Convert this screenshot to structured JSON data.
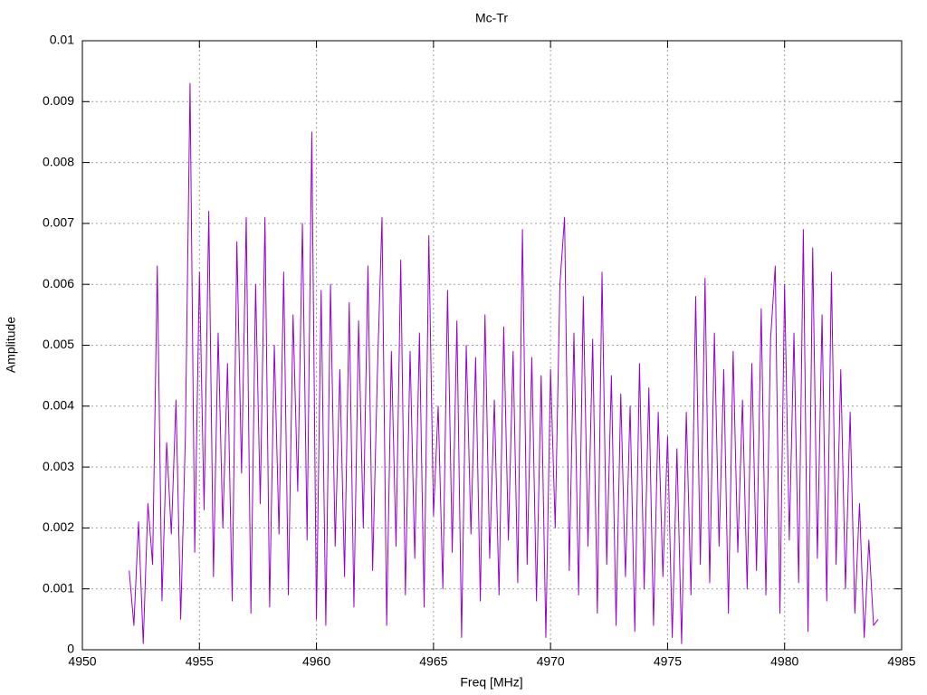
{
  "chart_data": {
    "type": "line",
    "title": "Mc-Tr",
    "xlabel": "Freq [MHz]",
    "ylabel": "Amplitude",
    "x": [
      4952,
      4952.2,
      4952.4,
      4952.6,
      4952.8,
      4953,
      4953.2,
      4953.4,
      4953.6,
      4953.8,
      4954,
      4954.2,
      4954.4,
      4954.6,
      4954.8,
      4955,
      4955.2,
      4955.4,
      4955.6,
      4955.8,
      4956,
      4956.2,
      4956.4,
      4956.6,
      4956.8,
      4957,
      4957.2,
      4957.4,
      4957.6,
      4957.8,
      4958,
      4958.2,
      4958.4,
      4958.6,
      4958.8,
      4959,
      4959.2,
      4959.4,
      4959.6,
      4959.8,
      4960,
      4960.2,
      4960.4,
      4960.6,
      4960.8,
      4961,
      4961.2,
      4961.4,
      4961.6,
      4961.8,
      4962,
      4962.2,
      4962.4,
      4962.6,
      4962.8,
      4963,
      4963.2,
      4963.4,
      4963.6,
      4963.8,
      4964,
      4964.2,
      4964.4,
      4964.6,
      4964.8,
      4965,
      4965.2,
      4965.4,
      4965.6,
      4965.8,
      4966,
      4966.2,
      4966.4,
      4966.6,
      4966.8,
      4967,
      4967.2,
      4967.4,
      4967.6,
      4967.8,
      4968,
      4968.2,
      4968.4,
      4968.6,
      4968.8,
      4969,
      4969.2,
      4969.4,
      4969.6,
      4969.8,
      4970,
      4970.2,
      4970.4,
      4970.6,
      4970.8,
      4971,
      4971.2,
      4971.4,
      4971.6,
      4971.8,
      4972,
      4972.2,
      4972.4,
      4972.6,
      4972.8,
      4973,
      4973.2,
      4973.4,
      4973.6,
      4973.8,
      4974,
      4974.2,
      4974.4,
      4974.6,
      4974.8,
      4975,
      4975.2,
      4975.4,
      4975.6,
      4975.8,
      4976,
      4976.2,
      4976.4,
      4976.6,
      4976.8,
      4977,
      4977.2,
      4977.4,
      4977.6,
      4977.8,
      4978,
      4978.2,
      4978.4,
      4978.6,
      4978.8,
      4979,
      4979.2,
      4979.4,
      4979.6,
      4979.8,
      4980,
      4980.2,
      4980.4,
      4980.6,
      4980.8,
      4981,
      4981.2,
      4981.4,
      4981.6,
      4981.8,
      4982,
      4982.2,
      4982.4,
      4982.6,
      4982.8,
      4983,
      4983.2,
      4983.4,
      4983.6,
      4983.8,
      4984
    ],
    "series": [
      {
        "name": "Mc-Tr",
        "color": "#9400d3",
        "values": [
          0.0013,
          0.0004,
          0.0021,
          0.0001,
          0.0024,
          0.0014,
          0.0063,
          0.0008,
          0.0034,
          0.0019,
          0.0041,
          0.0005,
          0.0035,
          0.0093,
          0.0016,
          0.0062,
          0.0023,
          0.0072,
          0.0012,
          0.0052,
          0.002,
          0.0047,
          0.0008,
          0.0067,
          0.0029,
          0.0071,
          0.0006,
          0.006,
          0.0024,
          0.0071,
          0.0007,
          0.005,
          0.0019,
          0.0062,
          0.0009,
          0.0055,
          0.0026,
          0.007,
          0.0018,
          0.0085,
          0.0005,
          0.0059,
          0.0004,
          0.006,
          0.0017,
          0.0046,
          0.0012,
          0.0057,
          0.0007,
          0.0054,
          0.002,
          0.0063,
          0.0013,
          0.0045,
          0.0071,
          0.0004,
          0.0049,
          0.0017,
          0.0064,
          0.0009,
          0.0049,
          0.0015,
          0.0052,
          0.0007,
          0.0068,
          0.0022,
          0.004,
          0.001,
          0.0059,
          0.0016,
          0.0054,
          0.0002,
          0.005,
          0.0019,
          0.0048,
          0.0008,
          0.0055,
          0.0015,
          0.0041,
          0.0009,
          0.0053,
          0.0018,
          0.0049,
          0.0011,
          0.0069,
          0.0014,
          0.0048,
          0.0008,
          0.0045,
          0.0002,
          0.0046,
          0.002,
          0.006,
          0.0071,
          0.0013,
          0.0052,
          0.0009,
          0.0058,
          0.0017,
          0.0051,
          0.0006,
          0.0062,
          0.0014,
          0.0045,
          0.0004,
          0.0042,
          0.0012,
          0.004,
          0.0003,
          0.0047,
          0.001,
          0.0043,
          0.0004,
          0.0039,
          0.0012,
          0.0035,
          0.0002,
          0.0033,
          0.0001,
          0.0039,
          0.0009,
          0.0058,
          0.0014,
          0.0061,
          0.0011,
          0.0052,
          0.0017,
          0.0046,
          0.0006,
          0.0049,
          0.0016,
          0.0041,
          0.001,
          0.0047,
          0.0013,
          0.0056,
          0.0009,
          0.0051,
          0.0063,
          0.0006,
          0.006,
          0.0018,
          0.0052,
          0.0011,
          0.0069,
          0.0003,
          0.0066,
          0.0015,
          0.0055,
          0.0008,
          0.0062,
          0.0014,
          0.0046,
          0.001,
          0.0039,
          0.0006,
          0.0024,
          0.0002,
          0.0018,
          0.0004,
          0.0005
        ]
      }
    ],
    "xlim": [
      4950,
      4985
    ],
    "xticks": [
      4950,
      4955,
      4960,
      4965,
      4970,
      4975,
      4980,
      4985
    ],
    "ylim": [
      0,
      0.01
    ],
    "yticks": [
      0,
      0.001,
      0.002,
      0.003,
      0.004,
      0.005,
      0.006,
      0.007,
      0.008,
      0.009,
      0.01
    ],
    "grid": true
  }
}
